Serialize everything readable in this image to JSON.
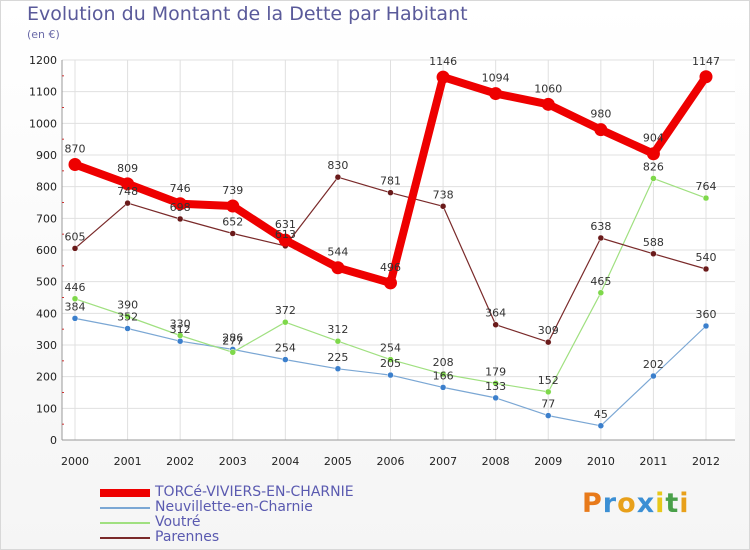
{
  "title": "Evolution du Montant de la Dette par Habitant",
  "subtitle": "(en €)",
  "brand": {
    "letters": [
      "P",
      "r",
      "o",
      "x",
      "i",
      "t",
      "i"
    ],
    "colors": [
      "#e87a1a",
      "#3b8fd4",
      "#e8a01a",
      "#3b8fd4",
      "#e8c81a",
      "#4aa04a",
      "#e8a01a"
    ]
  },
  "chart_data": {
    "type": "line",
    "title": "Evolution du Montant de la Dette par Habitant",
    "ylabel": "(en €)",
    "xlabel": "",
    "x": [
      "2000",
      "2001",
      "2002",
      "2003",
      "2004",
      "2005",
      "2006",
      "2007",
      "2008",
      "2009",
      "2010",
      "2011",
      "2012"
    ],
    "ylim": [
      0,
      1200
    ],
    "yticks": [
      "0",
      "100",
      "200",
      "300",
      "400",
      "500",
      "600",
      "700",
      "800",
      "900",
      "1000",
      "1100",
      "1200"
    ],
    "grid": true,
    "legend_position": "bottom-left",
    "series": [
      {
        "name": "TORCé-VIVIERS-EN-CHARNIE",
        "color": "#ee0000",
        "marker": "#ee0000",
        "emphasis": true,
        "values": [
          870,
          809,
          746,
          739,
          631,
          544,
          496,
          1146,
          1094,
          1060,
          980,
          904,
          1147
        ]
      },
      {
        "name": "Neuvillette-en-Charnie",
        "color": "#7ba7d4",
        "marker": "#3b7fcc",
        "emphasis": false,
        "values": [
          384,
          352,
          312,
          286,
          254,
          225,
          205,
          166,
          133,
          77,
          45,
          202,
          360
        ]
      },
      {
        "name": "Voutré",
        "color": "#a0e080",
        "marker": "#7ed84a",
        "emphasis": false,
        "values": [
          446,
          390,
          330,
          277,
          372,
          312,
          254,
          208,
          179,
          152,
          465,
          826,
          764
        ]
      },
      {
        "name": "Parennes",
        "color": "#7a2a2a",
        "marker": "#6a1a1a",
        "emphasis": false,
        "values": [
          605,
          748,
          698,
          652,
          613,
          830,
          781,
          738,
          364,
          309,
          638,
          588,
          540
        ]
      }
    ]
  }
}
